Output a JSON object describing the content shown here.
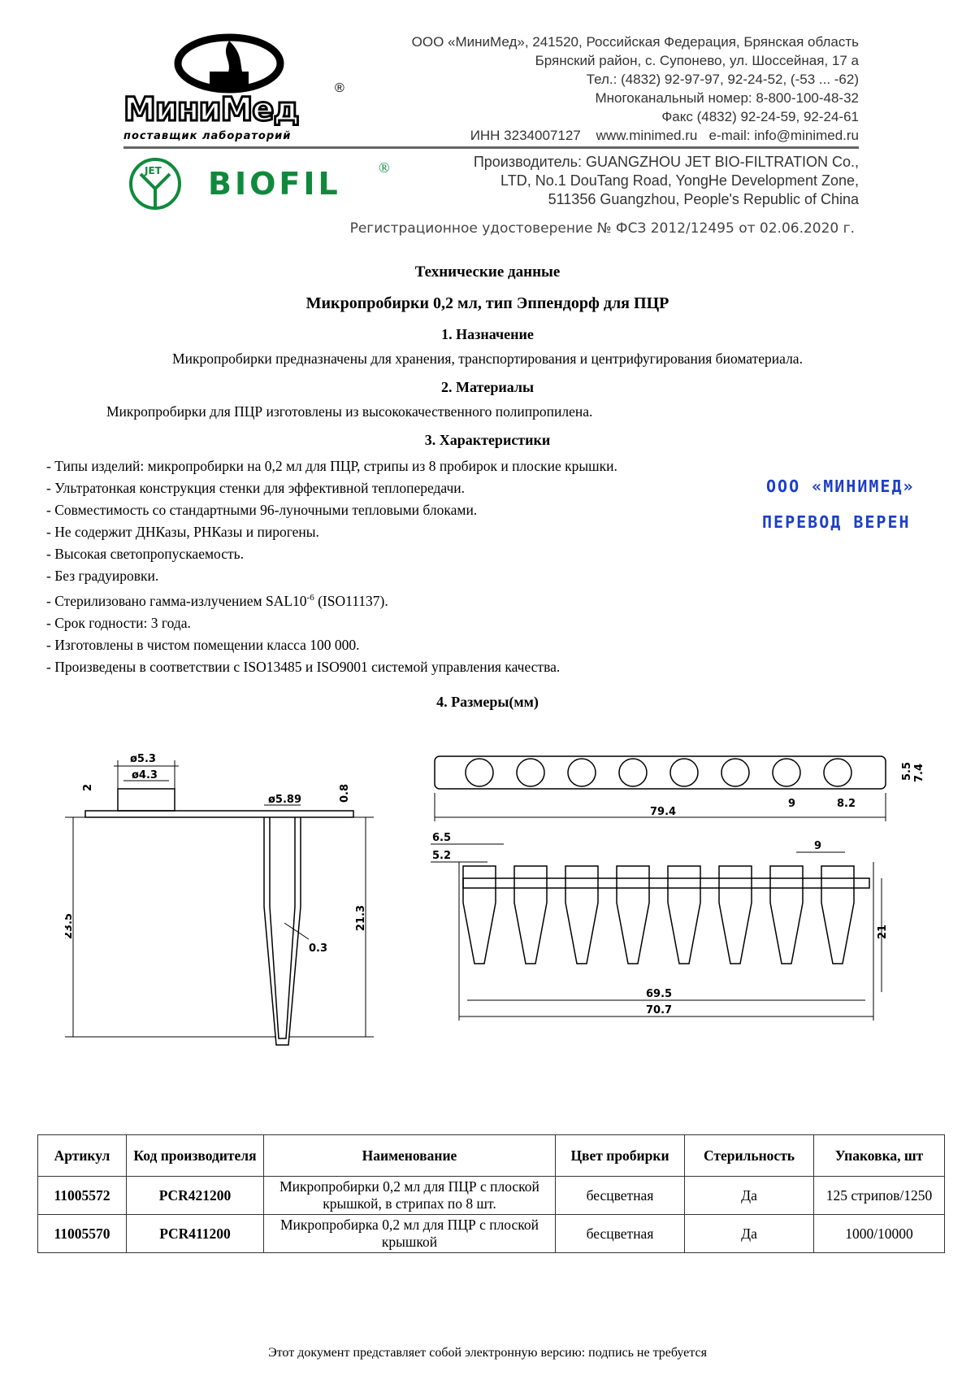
{
  "header": {
    "logo_minimed": "МиниМед",
    "logo_minimed_tagline": "поставщик лабораторий",
    "logo_biofil": "BIOFIL",
    "logo_jet": "JET",
    "company_lines": [
      "ООО «МиниМед», 241520, Российская Федерация, Брянская область",
      "Брянский район, с. Супонево,  ул. Шоссейная, 17 а",
      "Тел.: (4832) 92-97-97, 92-24-52, (-53 ... -62)",
      "Многоканальный номер: 8-800-100-48-32",
      "Факс (4832) 92-24-59, 92-24-61"
    ],
    "inn": "ИНН 3234007127",
    "website": "www.minimed.ru",
    "email": "e-mail: info@minimed.ru",
    "manufacturer_lines": [
      "Производитель: GUANGZHOU JET BIO-FILTRATION Co.,",
      "LTD, No.1 DouTang Road, YongHe Development Zone,",
      "511356 Guangzhou, People's Republic of China"
    ],
    "registration": "Регистрационное удостоверение № ФСЗ 2012/12495 от 02.06.2020 г."
  },
  "doc": {
    "title": "Технические данные",
    "subtitle": "Микропробирки 0,2 мл, тип Эппендорф для ПЦР",
    "s1_title": "1.    Назначение",
    "s1_text": "Микропробирки предназначены для хранения, транспортирования и центрифугирования биоматериала.",
    "s2_title": "2.    Материалы",
    "s2_text": "Микропробирки для ПЦР изготовлены из высококачественного полипропилена.",
    "s3_title": "3.    Характеристики",
    "s3_items": [
      "- Типы изделий: микропробирки на 0,2 мл для ПЦР, стрипы из 8 пробирок и плоские крышки.",
      "- Ультратонкая конструкция стенки для эффективной теплопередачи.",
      "- Совместимость со стандартными 96-луночными тепловыми блоками.",
      "- Не содержит ДНКазы, РНКазы и пирогены.",
      "- Высокая светопропускаемость.",
      "- Без градуировки."
    ],
    "s3_steril_pre": "- Стерилизовано гамма-излучением SAL10",
    "s3_steril_sup": "-6",
    "s3_steril_post": " (ISO11137).",
    "s3_items2": [
      "- Срок годности: 3 года.",
      "- Изготовлены в чистом помещении класса 100 000.",
      "- Произведены в соответствии с ISO13485 и ISO9001 системой управления качества."
    ],
    "s4_title": "4.    Размеры(мм)",
    "stamp_line1": "ООО «МИНИМЕД»",
    "stamp_line2": "ПЕРЕВОД  ВЕРЕН"
  },
  "drawing": {
    "tube": {
      "cap_outer": "ø5.3",
      "cap_inner": "ø4.3",
      "cap_h": "2",
      "rim": "ø5.89",
      "rim_h": "0.8",
      "total": "23.5",
      "body": "21.3",
      "wall": "0.3"
    },
    "strip": {
      "top_w": "5.5",
      "top_h": "7.4",
      "pitch": "9",
      "end": "8.2",
      "length": "79.4",
      "d1": "6.5",
      "d2": "5.2",
      "pitch2": "9",
      "height": "21",
      "inner_len": "69.5",
      "outer_len": "70.7"
    }
  },
  "table": {
    "headers": [
      "Артикул",
      "Код производителя",
      "Наименование",
      "Цвет пробирки",
      "Стерильность",
      "Упаковка, шт"
    ],
    "rows": [
      [
        "11005572",
        "PCR421200",
        "Микропробирки  0,2 мл для ПЦР с плоской крышкой, в стрипах по 8 шт.",
        "бесцветная",
        "Да",
        "125 стрипов/1250"
      ],
      [
        "11005570",
        "PCR411200",
        "Микропробирка  0,2 мл для ПЦР с плоской крышкой",
        "бесцветная",
        "Да",
        "1000/10000"
      ]
    ]
  },
  "footer": "Этот документ представляет собой электронную версию: подпись не требуется",
  "colors": {
    "biofil_green": "#0f8a3c",
    "stamp_blue": "#1d3fc7"
  }
}
